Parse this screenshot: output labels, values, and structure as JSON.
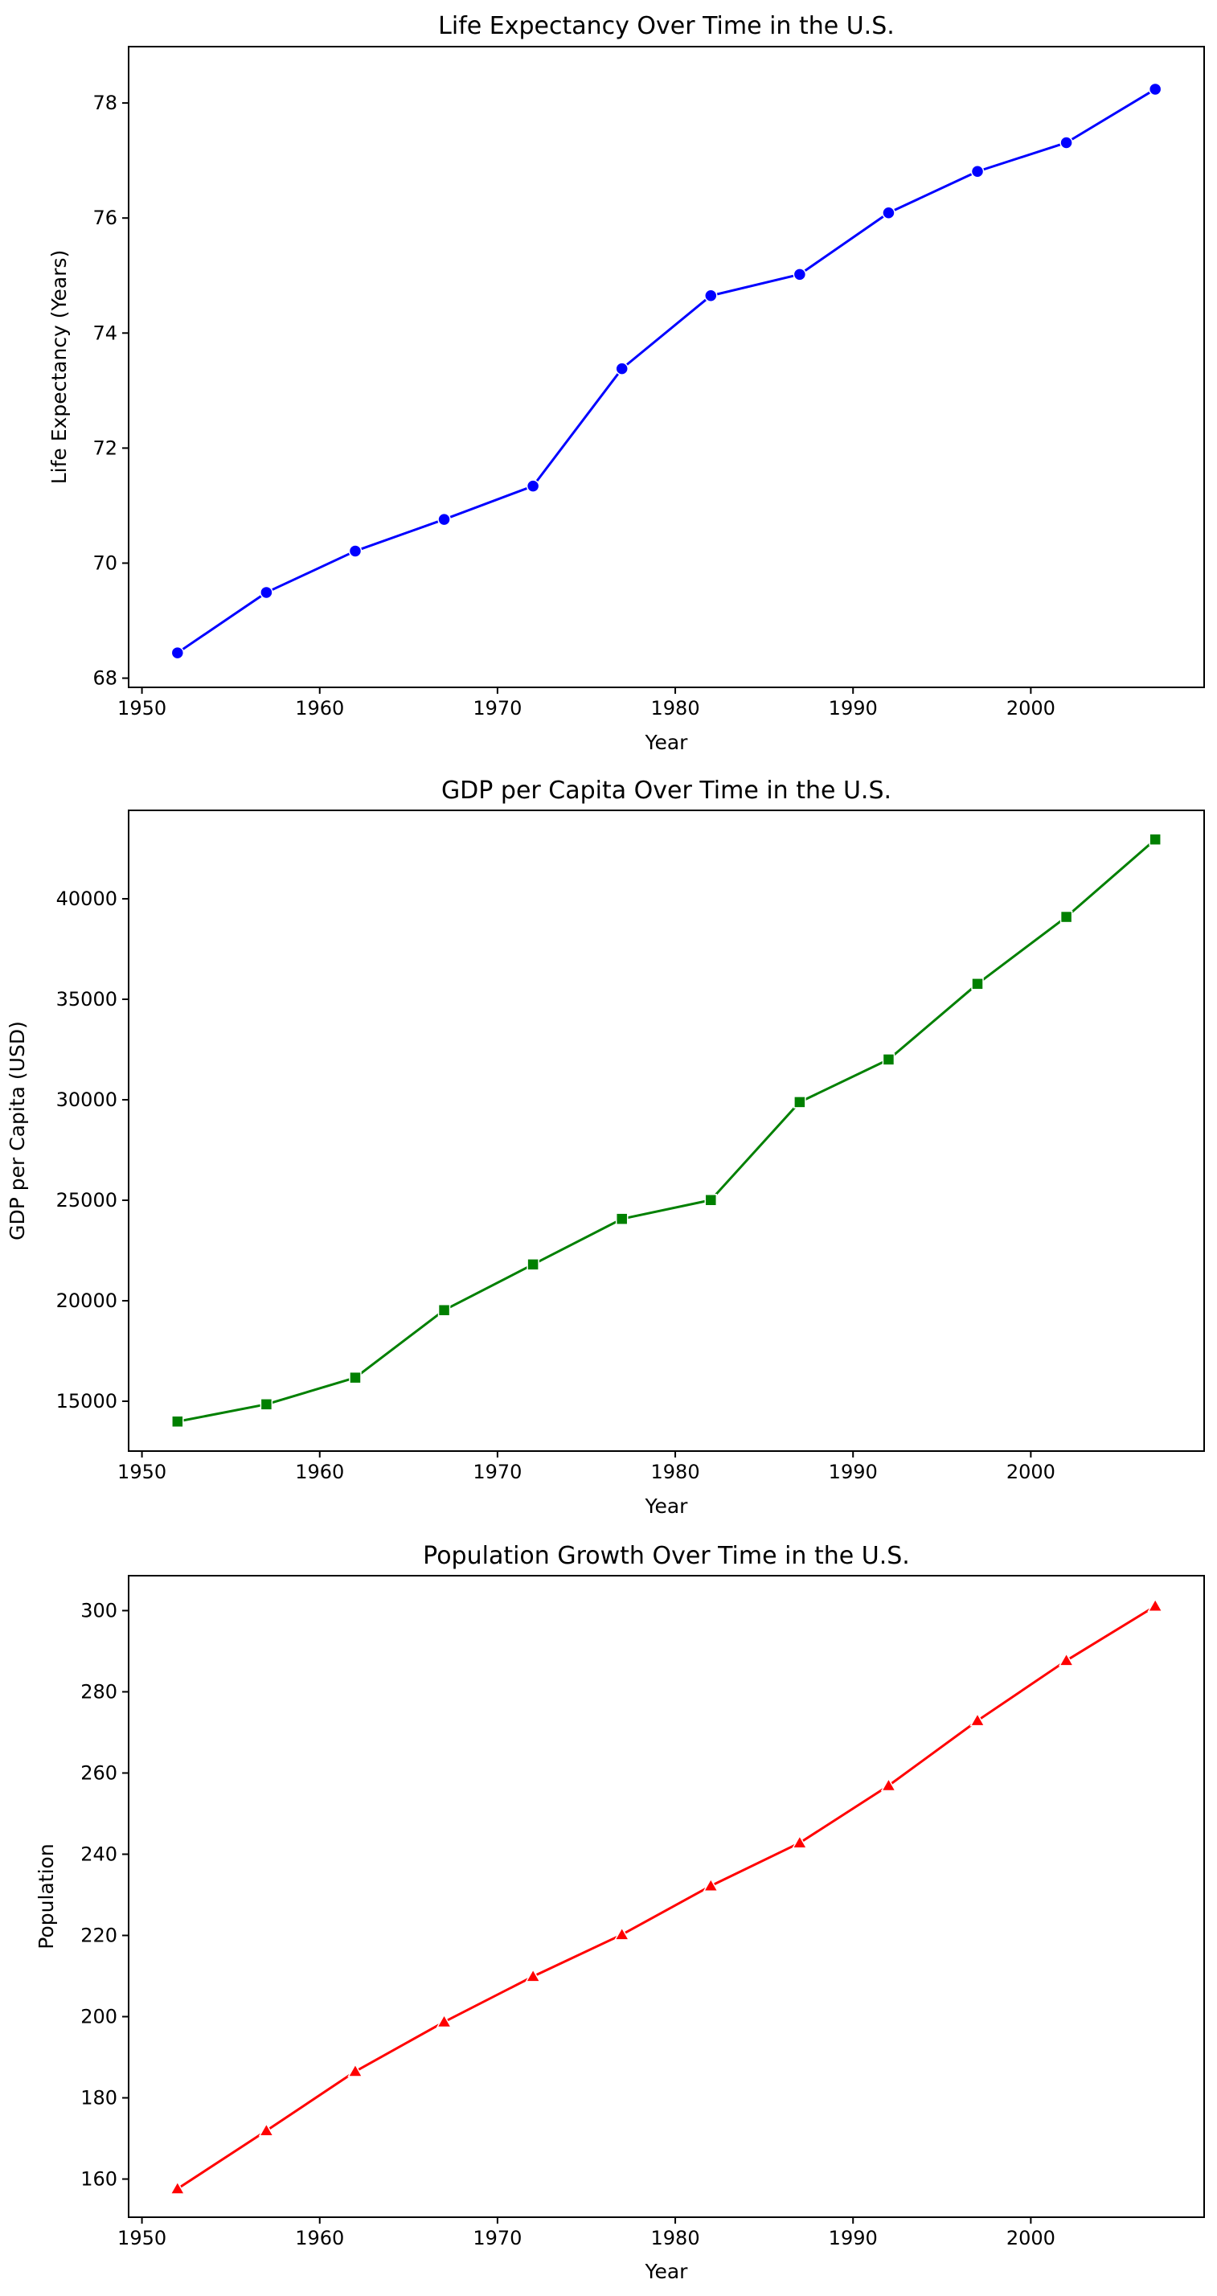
{
  "chart_data": [
    {
      "type": "line",
      "title": "Life Expectancy Over Time in the U.S.",
      "xlabel": "Year",
      "ylabel": "Life Expectancy (Years)",
      "xlim": [
        1949.25,
        2009.75
      ],
      "ylim": [
        67.84,
        78.98
      ],
      "xticks": [
        1950,
        1960,
        1970,
        1980,
        1990,
        2000
      ],
      "yticks": [
        68,
        70,
        72,
        74,
        76,
        78
      ],
      "grid": false,
      "color": "#0000ff",
      "marker": "circle",
      "x": [
        1952,
        1957,
        1962,
        1967,
        1972,
        1977,
        1982,
        1987,
        1992,
        1997,
        2002,
        2007
      ],
      "y": [
        68.44,
        69.49,
        70.21,
        70.76,
        71.34,
        73.38,
        74.65,
        75.02,
        76.09,
        76.81,
        77.31,
        78.24
      ]
    },
    {
      "type": "line",
      "title": "GDP per Capita Over Time in the U.S.",
      "xlabel": "Year",
      "ylabel": "GDP per Capita (USD)",
      "xlim": [
        1949.25,
        2009.75
      ],
      "ylim": [
        12520,
        44400
      ],
      "xticks": [
        1950,
        1960,
        1970,
        1980,
        1990,
        2000
      ],
      "yticks": [
        15000,
        20000,
        25000,
        30000,
        35000,
        40000
      ],
      "grid": false,
      "color": "#008000",
      "marker": "square",
      "x": [
        1952,
        1957,
        1962,
        1967,
        1972,
        1977,
        1982,
        1987,
        1992,
        1997,
        2002,
        2007
      ],
      "y": [
        13990,
        14847,
        16173,
        19531,
        21806,
        24073,
        25010,
        29884,
        32004,
        35767,
        39098,
        42952
      ]
    },
    {
      "type": "line",
      "title": "Population Growth Over Time in the U.S.",
      "xlabel": "Year",
      "ylabel": "Population",
      "xlim": [
        1949.25,
        2009.75
      ],
      "ylim": [
        150.6,
        308.6
      ],
      "xticks": [
        1950,
        1960,
        1970,
        1980,
        1990,
        2000
      ],
      "yticks": [
        160,
        180,
        200,
        220,
        240,
        260,
        280,
        300
      ],
      "grid": false,
      "color": "#ff0000",
      "marker": "triangle",
      "x": [
        1952,
        1957,
        1962,
        1967,
        1972,
        1977,
        1982,
        1987,
        1992,
        1997,
        2002,
        2007
      ],
      "y": [
        157.6,
        171.9,
        186.5,
        198.7,
        209.9,
        220.2,
        232.2,
        242.8,
        256.9,
        272.9,
        287.7,
        301.1
      ]
    }
  ]
}
